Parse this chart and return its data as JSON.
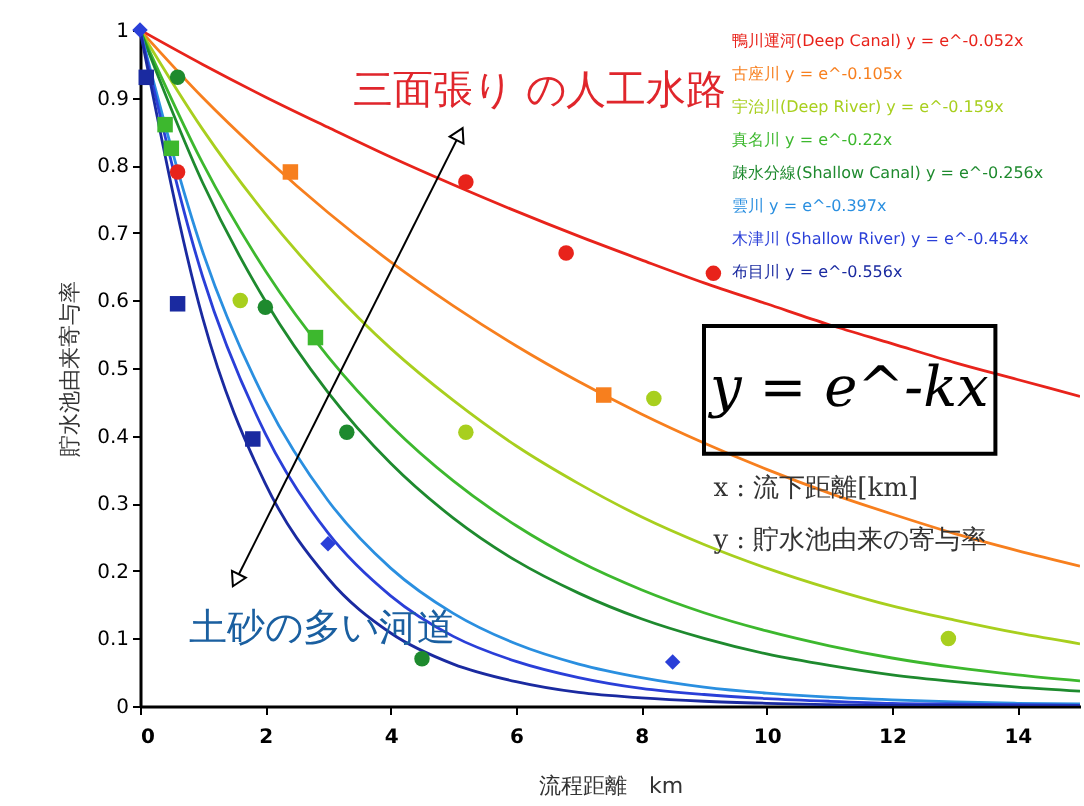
{
  "chart_data": {
    "type": "line",
    "xlabel": "流程距離　km",
    "ylabel": "貯水池由来寄与率",
    "x": [
      0,
      1,
      2,
      3,
      4,
      5,
      6,
      7,
      8,
      9,
      10,
      11,
      12,
      13,
      14,
      15
    ],
    "xlim": [
      0,
      15
    ],
    "xticks": [
      0,
      2,
      4,
      6,
      8,
      10,
      12,
      14
    ],
    "ylim": [
      0,
      1
    ],
    "yticks": [
      0,
      0.1,
      0.2,
      0.3,
      0.4,
      0.5,
      0.6,
      0.7,
      0.8,
      0.9,
      1
    ],
    "grid": false,
    "legend": "top right",
    "line_style": "solid",
    "series": [
      {
        "name": "鴨川運河(Deep Canal)  y = e^-0.052x",
        "color": "#e8231b",
        "values": [
          1,
          0.949,
          0.901,
          0.856,
          0.812,
          0.771,
          0.732,
          0.695,
          0.66,
          0.626,
          0.595,
          0.564,
          0.536,
          0.508,
          0.483,
          0.458
        ]
      },
      {
        "name": "古座川  y = e^-0.105x",
        "color": "#f77f1e",
        "values": [
          1,
          0.9,
          0.811,
          0.73,
          0.657,
          0.592,
          0.533,
          0.48,
          0.432,
          0.389,
          0.35,
          0.315,
          0.284,
          0.255,
          0.23,
          0.207
        ]
      },
      {
        "name": "宇治川(Deep River)  y = e^-0.159x",
        "color": "#a8cf1e",
        "values": [
          1,
          0.853,
          0.728,
          0.621,
          0.529,
          0.452,
          0.385,
          0.329,
          0.28,
          0.239,
          0.204,
          0.174,
          0.148,
          0.127,
          0.108,
          0.092
        ]
      },
      {
        "name": "真名川  y = e^-0.22x",
        "color": "#3db82e",
        "values": [
          1,
          0.803,
          0.644,
          0.517,
          0.415,
          0.333,
          0.267,
          0.214,
          0.172,
          0.138,
          0.111,
          0.089,
          0.071,
          0.057,
          0.046,
          0.037
        ]
      },
      {
        "name": "疎水分線(Shallow Canal)  y = e^-0.256x",
        "color": "#1e8a2e",
        "values": [
          1,
          0.774,
          0.599,
          0.464,
          0.359,
          0.278,
          0.215,
          0.167,
          0.129,
          0.1,
          0.077,
          0.06,
          0.046,
          0.036,
          0.028,
          0.022
        ]
      },
      {
        "name": "雲川  y = e^-0.397x",
        "color": "#2a8fe0",
        "values": [
          1,
          0.672,
          0.452,
          0.304,
          0.204,
          0.137,
          0.092,
          0.062,
          0.042,
          0.028,
          0.019,
          0.013,
          0.009,
          0.006,
          0.004,
          0.003
        ]
      },
      {
        "name": "木津川 (Shallow River) y = e^-0.454x",
        "color": "#2a3fd8",
        "values": [
          1,
          0.635,
          0.403,
          0.256,
          0.163,
          0.103,
          0.066,
          0.042,
          0.026,
          0.017,
          0.011,
          0.007,
          0.004,
          0.003,
          0.002,
          0.001
        ]
      },
      {
        "name": "布目川  y = e^-0.556x",
        "color": "#1a2aa0",
        "values": [
          1,
          0.574,
          0.329,
          0.189,
          0.108,
          0.062,
          0.036,
          0.02,
          0.012,
          0.007,
          0.004,
          0.002,
          0.001,
          0.001,
          0.0,
          0.0
        ]
      },
      {
        "type": "scatter",
        "marker": "circle",
        "color": "#e8231b",
        "x": [
          0.6,
          5.2,
          6.8,
          9.15
        ],
        "values": [
          0.79,
          0.775,
          0.67,
          0.64
        ]
      },
      {
        "type": "scatter",
        "marker": "square",
        "color": "#f77f1e",
        "x": [
          2.4,
          7.4
        ],
        "values": [
          0.79,
          0.46
        ]
      },
      {
        "type": "scatter",
        "marker": "circle",
        "color": "#a8cf1e",
        "x": [
          1.6,
          5.2,
          8.2,
          12.9
        ],
        "values": [
          0.6,
          0.405,
          0.455,
          0.1
        ]
      },
      {
        "type": "scatter",
        "marker": "square",
        "color": "#3db82e",
        "x": [
          0.4,
          0.5,
          2.8
        ],
        "values": [
          0.86,
          0.825,
          0.545
        ]
      },
      {
        "type": "scatter",
        "marker": "circle",
        "color": "#1e8a2e",
        "x": [
          0.6,
          2.0,
          3.3,
          4.5
        ],
        "values": [
          0.93,
          0.59,
          0.405,
          0.07
        ]
      },
      {
        "type": "scatter",
        "marker": "diamond",
        "color": "#2a3fd8",
        "x": [
          0,
          3.0,
          8.5
        ],
        "values": [
          1,
          0.24,
          0.065
        ]
      },
      {
        "type": "scatter",
        "marker": "square",
        "color": "#1a2aa0",
        "x": [
          0.1,
          0.6,
          1.8
        ],
        "values": [
          0.93,
          0.595,
          0.395
        ]
      }
    ],
    "annotations": [
      "三面張り の人工水路",
      "土砂の多い河道",
      "y = e^-kx",
      "x : 流下距離[km]",
      "y : 貯水池由来の寄与率"
    ]
  }
}
